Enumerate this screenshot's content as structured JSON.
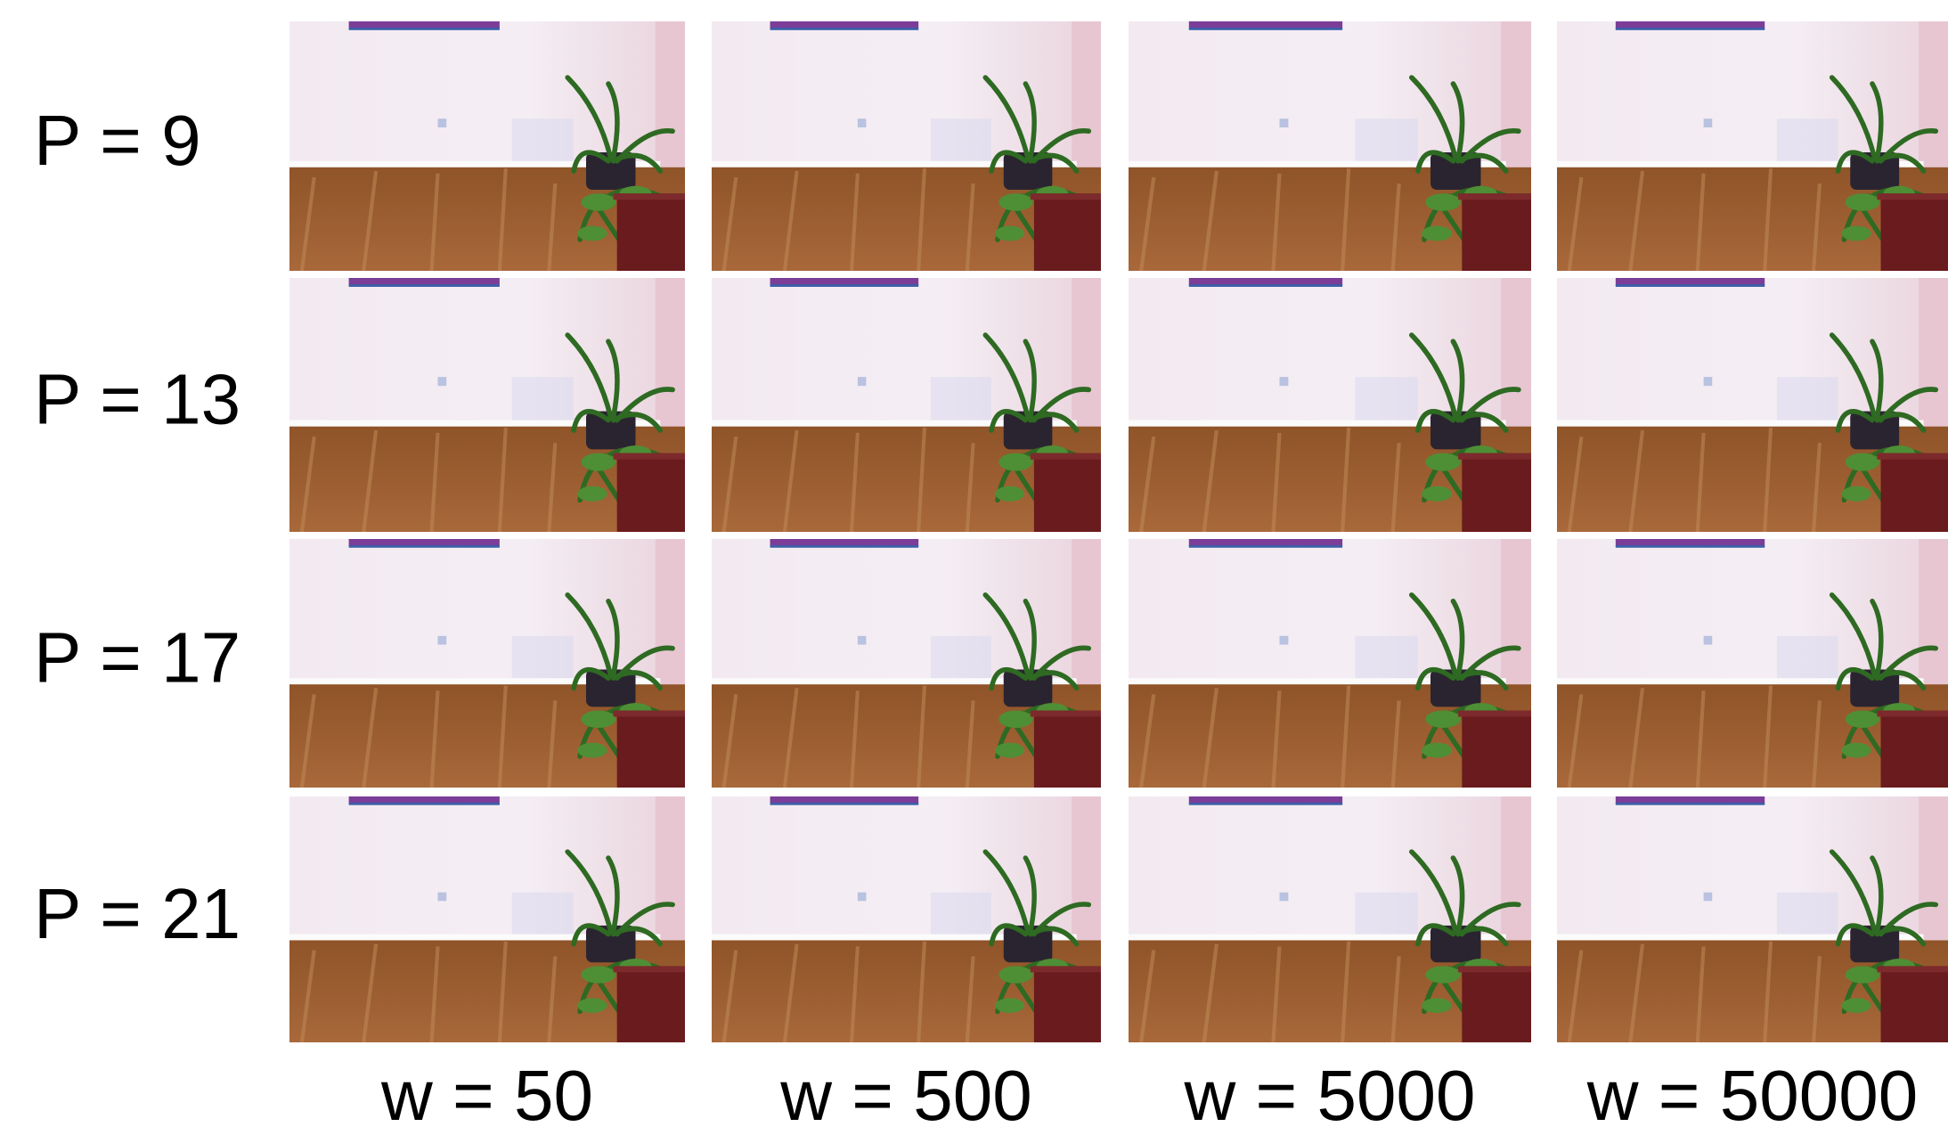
{
  "figure": {
    "row_labels": [
      "P = 9",
      "P = 13",
      "P = 17",
      "P = 21"
    ],
    "column_labels": [
      "w = 50",
      "w = 500",
      "w = 5000",
      "w = 50000"
    ]
  }
}
